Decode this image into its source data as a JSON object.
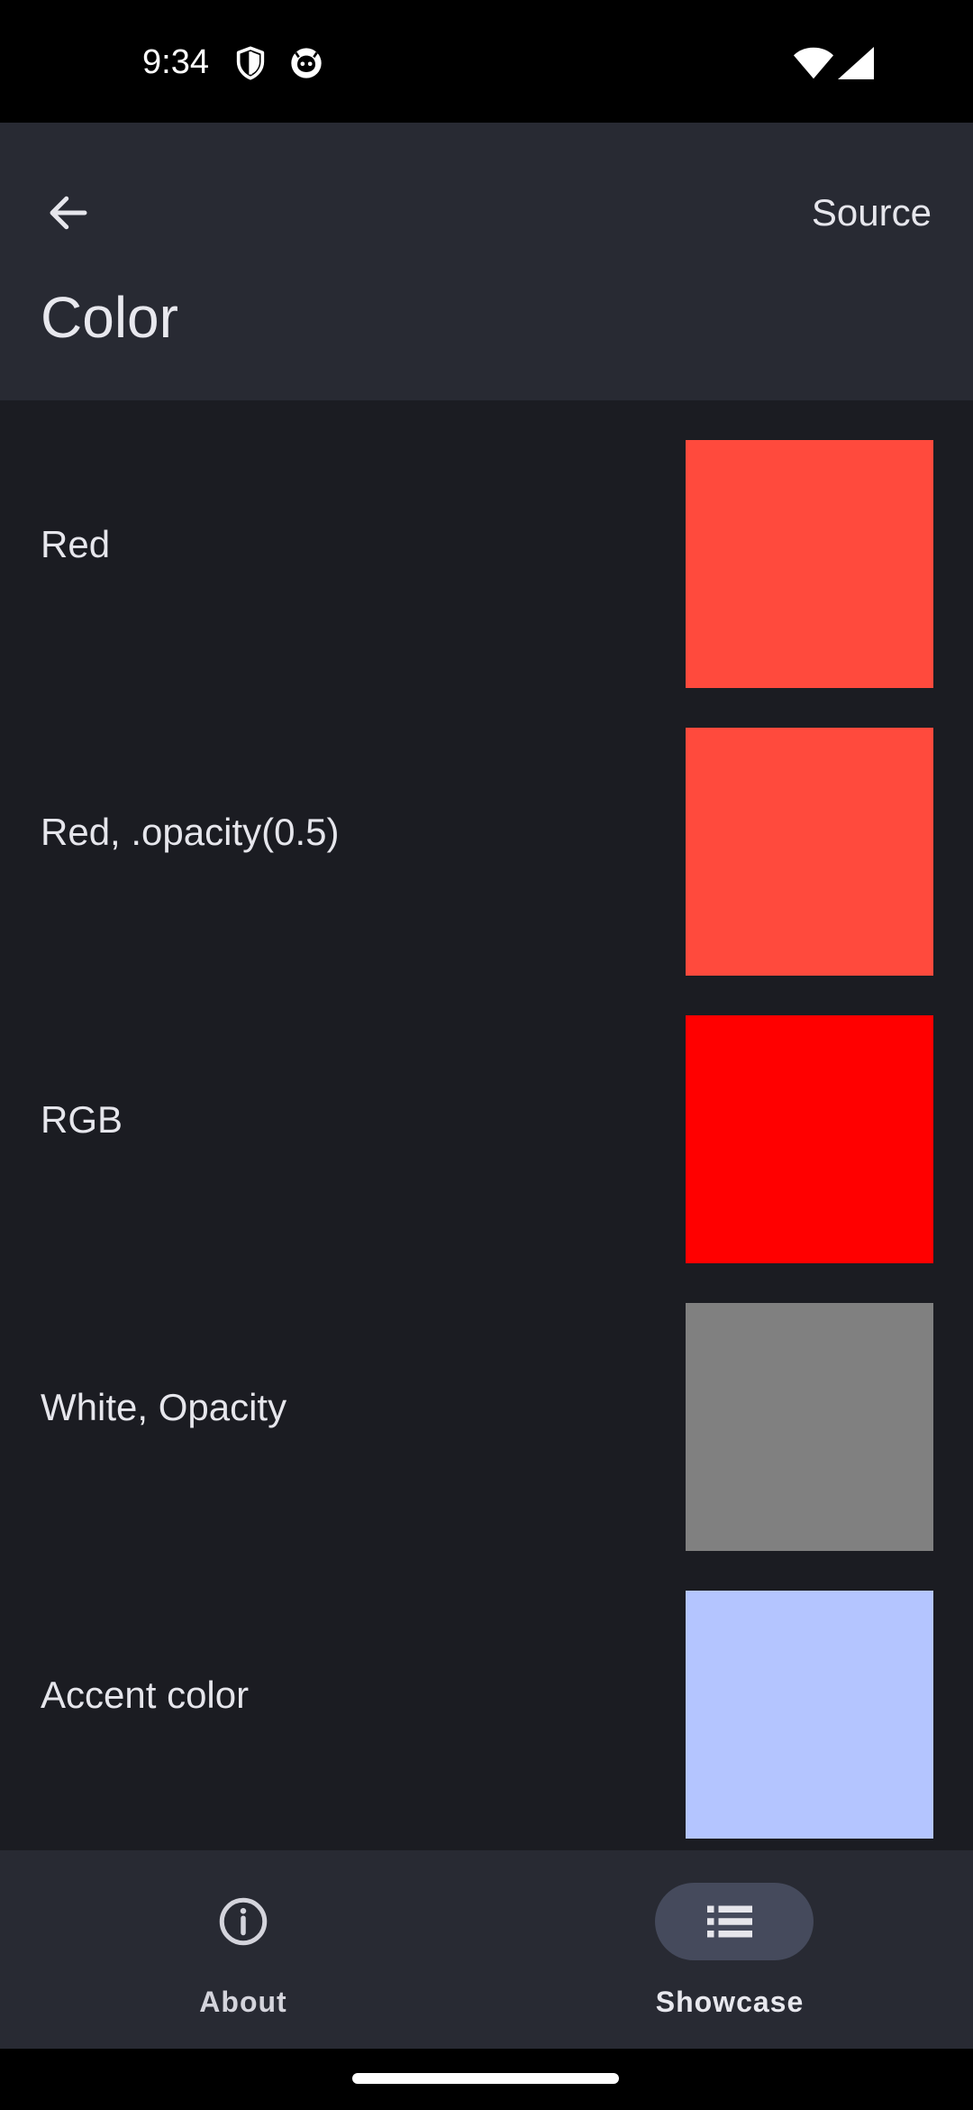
{
  "status_bar": {
    "time": "9:34",
    "left_icons": [
      "shield-icon",
      "app-notification-icon"
    ],
    "right_icons": [
      "wifi-icon",
      "cellular-signal-icon"
    ]
  },
  "app_bar": {
    "back_icon": "arrow-back-icon",
    "action_label": "Source",
    "title": "Color"
  },
  "list": {
    "items": [
      {
        "label": "Red",
        "swatch_color": "#ff4a3d"
      },
      {
        "label": "Red, .opacity(0.5)",
        "swatch_color": "#ff4a3d"
      },
      {
        "label": "RGB",
        "swatch_color": "#ff0000"
      },
      {
        "label": "White, Opacity",
        "swatch_color": "#808080"
      },
      {
        "label": "Accent color",
        "swatch_color": "#b4c5ff"
      }
    ]
  },
  "bottom_nav": {
    "items": [
      {
        "label": "About",
        "icon": "info-icon",
        "selected": false
      },
      {
        "label": "Showcase",
        "icon": "list-icon",
        "selected": true
      }
    ],
    "indicator_color": "#454a5c"
  },
  "colors": {
    "status_bar_bg": "#000000",
    "app_bar_bg": "#282a33",
    "content_bg": "#1b1c22",
    "text_primary": "#e6e6ec"
  }
}
